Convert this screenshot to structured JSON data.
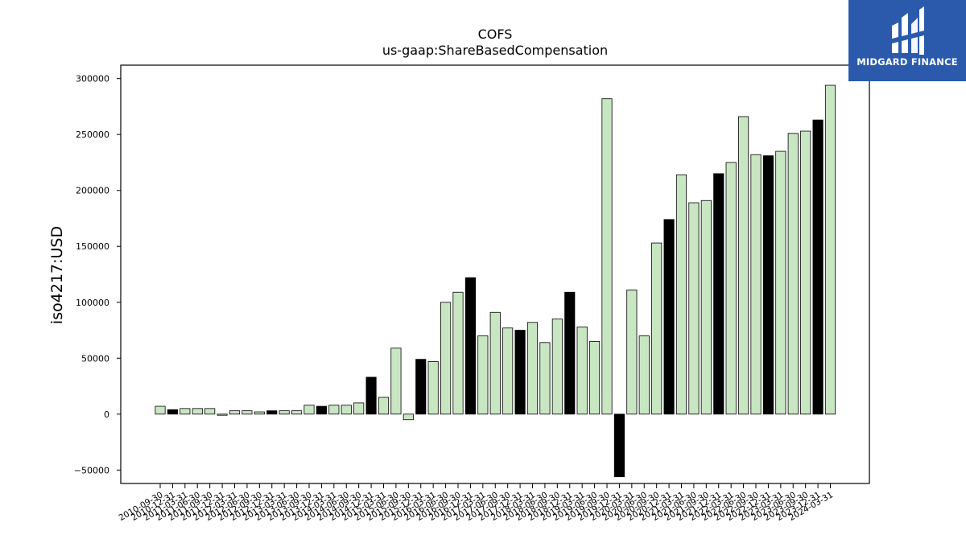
{
  "logo": {
    "text": "MIDGARD FINANCE"
  },
  "chart_data": {
    "type": "bar",
    "title": "COFS",
    "subtitle": "us-gaap:ShareBasedCompensation",
    "xlabel": "",
    "ylabel": "iso4217:USD",
    "ylim": [
      -62000,
      312000
    ],
    "yticks": [
      -50000,
      0,
      50000,
      100000,
      150000,
      200000,
      250000,
      300000
    ],
    "grid": false,
    "colors": {
      "light": "#c9e6c3",
      "dark": "#000000",
      "edge": "#000000"
    },
    "categories": [
      "2010-09-30",
      "2010-12-31",
      "2011-03-31",
      "2011-06-30",
      "2011-09-30",
      "2011-12-31",
      "2012-03-31",
      "2012-06-30",
      "2012-09-30",
      "2012-12-31",
      "2013-03-31",
      "2013-06-30",
      "2013-09-30",
      "2013-12-31",
      "2014-03-31",
      "2014-06-30",
      "2014-09-30",
      "2014-12-31",
      "2015-03-31",
      "2015-06-30",
      "2015-09-30",
      "2015-12-31",
      "2016-03-31",
      "2016-06-30",
      "2016-09-30",
      "2016-12-31",
      "2017-03-31",
      "2017-06-30",
      "2017-09-30",
      "2017-12-31",
      "2018-03-31",
      "2018-06-30",
      "2018-09-30",
      "2018-12-31",
      "2019-03-31",
      "2019-06-30",
      "2019-09-30",
      "2019-12-31",
      "2020-03-31",
      "2020-06-30",
      "2020-09-30",
      "2020-12-31",
      "2021-03-31",
      "2021-06-30",
      "2021-09-30",
      "2021-12-31",
      "2022-03-31",
      "2022-06-30",
      "2022-09-30",
      "2022-12-31",
      "2023-03-31",
      "2023-06-30",
      "2023-09-30",
      "2023-12-31",
      "2024-03-31"
    ],
    "values": [
      7000,
      4000,
      5000,
      5000,
      5000,
      -1000,
      3000,
      3000,
      2000,
      3000,
      3000,
      3000,
      8000,
      7000,
      8000,
      8000,
      10000,
      33000,
      15000,
      59000,
      -5000,
      49000,
      47000,
      100000,
      109000,
      122000,
      70000,
      91000,
      77000,
      75000,
      82000,
      64000,
      85000,
      109000,
      78000,
      65000,
      282000,
      -56000,
      111000,
      70000,
      153000,
      174000,
      214000,
      189000,
      191000,
      215000,
      225000,
      266000,
      232000,
      231000,
      235000,
      251000,
      253000,
      263000,
      294000
    ],
    "highlight": [
      false,
      true,
      false,
      false,
      false,
      false,
      false,
      false,
      false,
      true,
      false,
      false,
      false,
      true,
      false,
      false,
      false,
      true,
      false,
      false,
      false,
      true,
      false,
      false,
      false,
      true,
      false,
      false,
      false,
      true,
      false,
      false,
      false,
      true,
      false,
      false,
      false,
      true,
      false,
      false,
      false,
      true,
      false,
      false,
      false,
      true,
      false,
      false,
      false,
      true,
      false,
      false,
      false,
      true,
      false
    ]
  }
}
